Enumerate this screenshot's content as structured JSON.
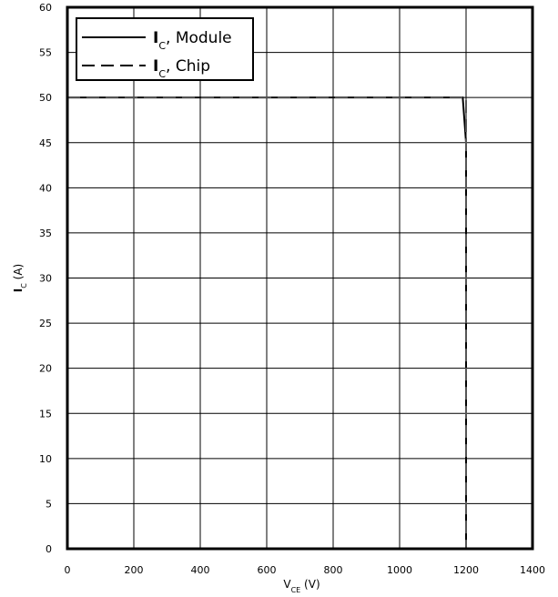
{
  "chart_data": {
    "type": "line",
    "xlabel": {
      "main": "V",
      "sub": "CE",
      "unit": " (V)"
    },
    "ylabel": {
      "main": "I",
      "sub": "C",
      "unit": " (A)"
    },
    "xlim": [
      0,
      1400
    ],
    "ylim": [
      0,
      60
    ],
    "x_ticks": [
      0,
      200,
      400,
      600,
      800,
      1000,
      1200,
      1400
    ],
    "y_ticks": [
      0,
      5,
      10,
      15,
      20,
      25,
      30,
      35,
      40,
      45,
      50,
      55,
      60
    ],
    "grid": true,
    "legend_position": "top-left",
    "series": [
      {
        "name": {
          "main": "I",
          "sub": "C",
          "rest": ", Module"
        },
        "style": "solid",
        "color": "#000000",
        "x": [
          0,
          1190,
          1200,
          1200
        ],
        "y": [
          50,
          50,
          45,
          0
        ]
      },
      {
        "name": {
          "main": "I",
          "sub": "C",
          "rest": ", Chip"
        },
        "style": "dashed",
        "color": "#000000",
        "x": [
          0,
          1200,
          1200
        ],
        "y": [
          50,
          50,
          0
        ]
      }
    ]
  }
}
